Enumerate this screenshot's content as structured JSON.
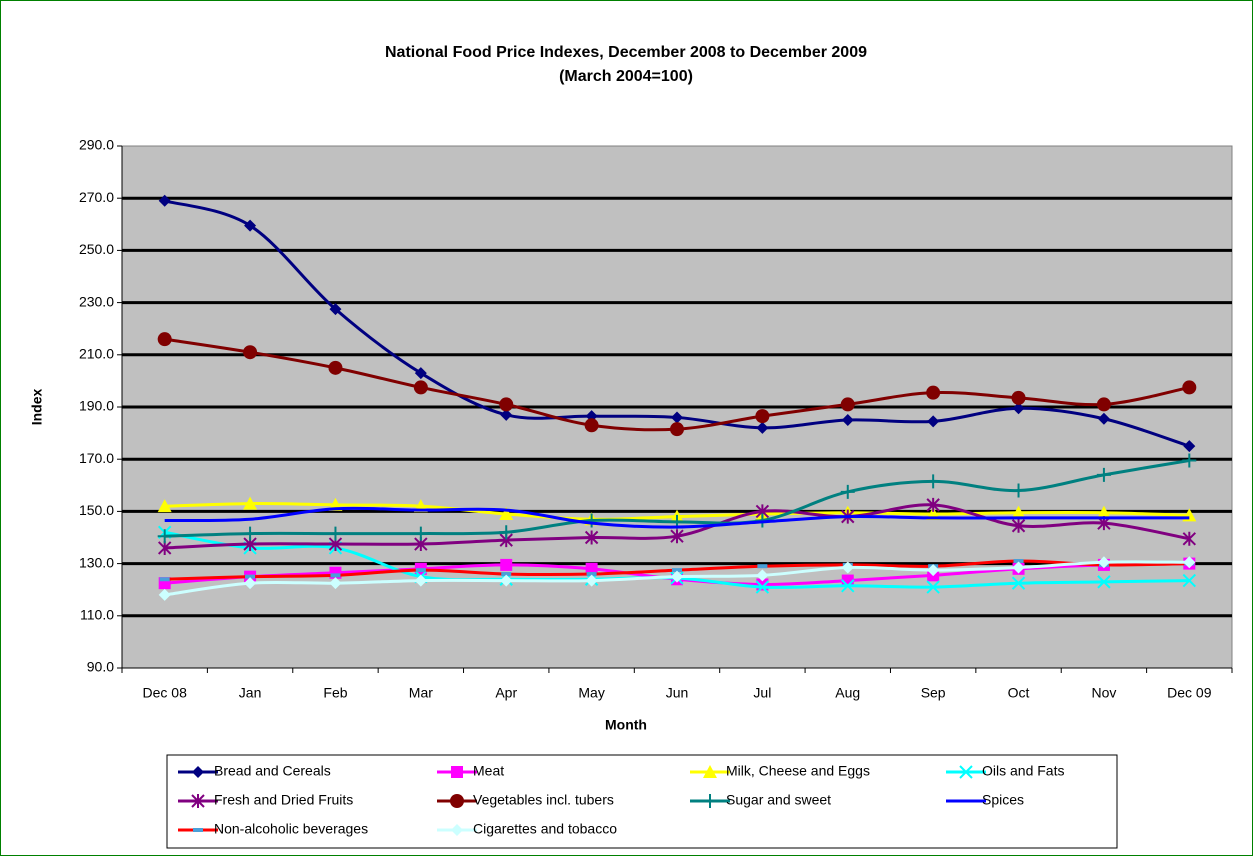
{
  "chart_data": {
    "type": "line",
    "title": "National Food Price Indexes, December 2008 to December 2009",
    "subtitle": "(March 2004=100)",
    "x_label": "Month",
    "y_label": "Index",
    "categories": [
      "Dec 08",
      "Jan",
      "Feb",
      "Mar",
      "Apr",
      "May",
      "Jun",
      "Jul",
      "Aug",
      "Sep",
      "Oct",
      "Nov",
      "Dec 09"
    ],
    "ylim": [
      90,
      290
    ],
    "yticks": [
      {
        "value": 90,
        "label": "90.0"
      },
      {
        "value": 110,
        "label": "110.0"
      },
      {
        "value": 130,
        "label": "130.0"
      },
      {
        "value": 150,
        "label": "150.0"
      },
      {
        "value": 170,
        "label": "170.0"
      },
      {
        "value": 190,
        "label": "190.0"
      },
      {
        "value": 210,
        "label": "210.0"
      },
      {
        "value": 230,
        "label": "230.0"
      },
      {
        "value": 250,
        "label": "250.0"
      },
      {
        "value": 270,
        "label": "270.0"
      },
      {
        "value": 290,
        "label": "290.0"
      }
    ],
    "grid": true,
    "smooth": true,
    "legend": "bottom",
    "series": [
      {
        "name": "Bread and Cereals",
        "color": "#000080",
        "marker": "diamond",
        "values": [
          269,
          259.5,
          227.5,
          203,
          187,
          186.5,
          186,
          182,
          185,
          184.5,
          189.5,
          185.5,
          175
        ]
      },
      {
        "name": "Meat",
        "color": "#ff00ff",
        "marker": "square",
        "values": [
          122.5,
          125,
          126.5,
          128,
          129.5,
          128,
          124,
          122,
          123.5,
          125.5,
          128,
          129.5,
          130
        ]
      },
      {
        "name": "Milk, Cheese and Eggs",
        "color": "#ffff00",
        "marker": "triangle",
        "values": [
          152,
          153,
          152.5,
          152,
          149,
          147,
          148,
          149,
          149.5,
          149,
          149.5,
          149.5,
          148.5
        ]
      },
      {
        "name": "Oils and Fats",
        "color": "#00ffff",
        "marker": "x",
        "values": [
          142,
          136,
          136,
          125,
          124,
          124,
          124.5,
          121,
          121.5,
          121,
          122.5,
          123,
          123.5
        ]
      },
      {
        "name": "Fresh and Dried Fruits",
        "color": "#800080",
        "marker": "star",
        "values": [
          136,
          137.5,
          137.5,
          137.5,
          139,
          140,
          140.5,
          150,
          148,
          152.5,
          144.5,
          145.5,
          139.5
        ]
      },
      {
        "name": "Vegetables incl. tubers",
        "color": "#800000",
        "marker": "circle",
        "values": [
          216,
          211,
          205,
          197.5,
          191,
          183,
          181.5,
          186.5,
          191,
          195.5,
          193.5,
          191,
          197.5
        ]
      },
      {
        "name": "Sugar and sweet",
        "color": "#008080",
        "marker": "plus",
        "values": [
          140.5,
          141.5,
          141.5,
          141.5,
          142,
          146.5,
          146,
          146.5,
          157.5,
          161.5,
          158,
          164,
          169.5
        ]
      },
      {
        "name": "Spices",
        "color": "#0000ff",
        "marker": "none",
        "values": [
          146.5,
          147,
          151,
          150.5,
          150.5,
          145.5,
          144,
          146,
          148,
          147.5,
          147.5,
          147.5,
          147.5
        ]
      },
      {
        "name": "Non-alcoholic beverages",
        "color": "#ff0000",
        "marker": "dash",
        "values": [
          124,
          125,
          125.5,
          127.5,
          126,
          126,
          127.5,
          129,
          129.5,
          129,
          131,
          129.5,
          130
        ]
      },
      {
        "name": "Cigarettes and tobacco",
        "color": "#ccffff",
        "marker": "diamond",
        "values": [
          118,
          122.5,
          122.5,
          123.5,
          123.5,
          123.5,
          125,
          125.5,
          128.5,
          127.5,
          128.5,
          130.5,
          130.5
        ]
      }
    ]
  }
}
